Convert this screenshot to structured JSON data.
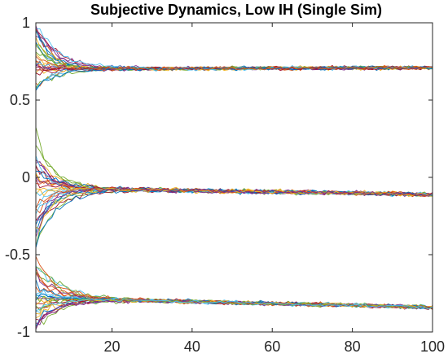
{
  "chart_data": {
    "type": "line",
    "title": "Subjective Dynamics, Low IH (Single Sim)",
    "xlabel": "",
    "ylabel": "",
    "xlim": [
      1,
      100
    ],
    "ylim": [
      -1,
      1
    ],
    "x_ticks": [
      20,
      40,
      60,
      80,
      100
    ],
    "y_ticks": [
      {
        "value": 1,
        "label": "1"
      },
      {
        "value": 0.5,
        "label": "0.5"
      },
      {
        "value": 0,
        "label": "0"
      },
      {
        "value": -0.5,
        "label": "-0.5"
      },
      {
        "value": -1,
        "label": "-1"
      }
    ],
    "grid": false,
    "legend": "none",
    "series_count": 90,
    "clusters": [
      {
        "group": "upper",
        "initial_range": [
          0.55,
          1.0
        ],
        "settle_start": 0.7,
        "settle_end": 0.71,
        "noise": 0.012
      },
      {
        "group": "middle",
        "initial_range": [
          -0.45,
          0.42
        ],
        "settle_start": -0.07,
        "settle_end": -0.11,
        "noise": 0.014
      },
      {
        "group": "lower",
        "initial_range": [
          -0.97,
          -0.52
        ],
        "settle_start": -0.78,
        "settle_end": -0.84,
        "noise": 0.013
      }
    ],
    "colors": [
      "#0072BD",
      "#D95319",
      "#EDB120",
      "#7E2F8E",
      "#77AC30",
      "#4DBEEE",
      "#A2142F"
    ]
  }
}
